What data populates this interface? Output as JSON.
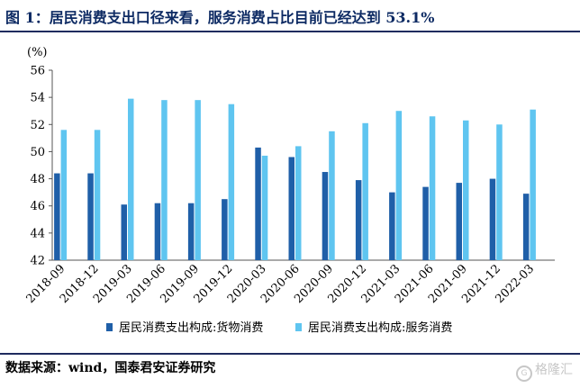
{
  "header": {
    "title": "图 1：居民消费支出口径来看，服务消费占比目前已经达到 53.1%"
  },
  "footer": {
    "source": "数据来源：wind，国泰君安证券研究",
    "watermark": "格隆汇",
    "watermark_logo": "G"
  },
  "colors": {
    "goods": "#1f5fa8",
    "services": "#5fc5f0",
    "title": "#0d2a63"
  },
  "chart_data": {
    "type": "bar",
    "ylabel": "(%)",
    "ylim": [
      42,
      56
    ],
    "yticks": [
      42,
      44,
      46,
      48,
      50,
      52,
      54,
      56
    ],
    "categories": [
      "2018-09",
      "2018-12",
      "2019-03",
      "2019-06",
      "2019-09",
      "2019-12",
      "2020-03",
      "2020-06",
      "2020-09",
      "2020-12",
      "2021-03",
      "2021-06",
      "2021-09",
      "2021-12",
      "2022-03"
    ],
    "series": [
      {
        "name": "居民消费支出构成:货物消费",
        "color": "#1f5fa8",
        "values": [
          48.4,
          48.4,
          46.1,
          46.2,
          46.2,
          46.5,
          50.3,
          49.6,
          48.5,
          47.9,
          47.0,
          47.4,
          47.7,
          48.0,
          46.9
        ]
      },
      {
        "name": "居民消费支出构成:服务消费",
        "color": "#5fc5f0",
        "values": [
          51.6,
          51.6,
          53.9,
          53.8,
          53.8,
          53.5,
          49.7,
          50.4,
          51.5,
          52.1,
          53.0,
          52.6,
          52.3,
          52.0,
          53.1
        ]
      }
    ],
    "grid": false,
    "legend": "bottom"
  }
}
